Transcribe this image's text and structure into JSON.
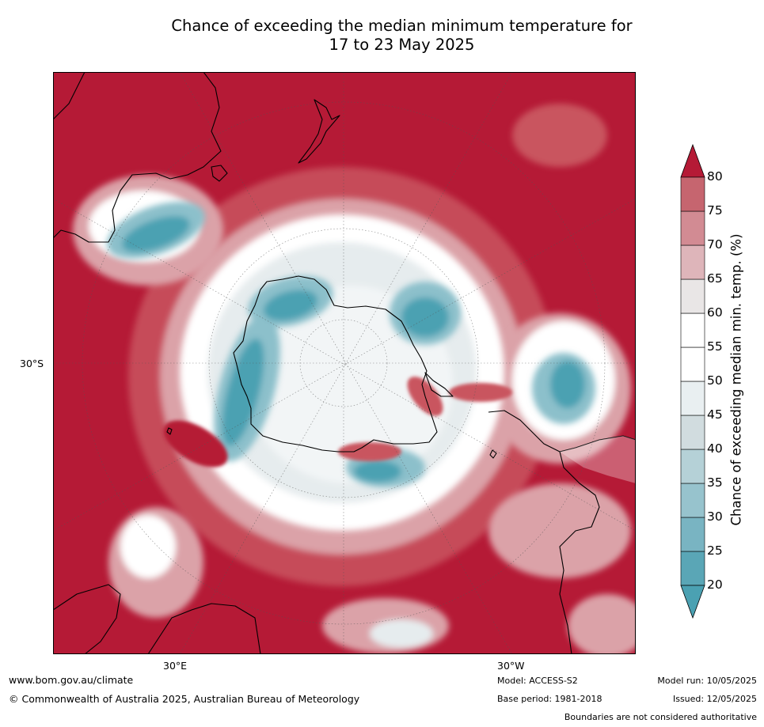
{
  "title_line1": "Chance of exceeding the median minimum temperature for",
  "title_line2": "17 to 23 May 2025",
  "axis_labels": {
    "left": "30°S",
    "bottom_left": "30°E",
    "bottom_right": "30°W"
  },
  "colorbar": {
    "label": "Chance of exceeding median min. temp. (%)",
    "ticks": [
      "20",
      "25",
      "30",
      "35",
      "40",
      "45",
      "50",
      "55",
      "60",
      "65",
      "70",
      "75",
      "80"
    ],
    "colors": [
      "#5aa6b6",
      "#79b4c2",
      "#97c3cd",
      "#b5d1d7",
      "#d1dcdf",
      "#e9eff1",
      "#ffffff",
      "#ffffff",
      "#e9e6e6",
      "#deb5ba",
      "#d28b93",
      "#c6656f",
      "#b8414d"
    ],
    "under_color": "#4ba1b2",
    "over_color": "#b51a36"
  },
  "palette": {
    "red_dark": "#b51a36",
    "red_mid": "#c9545f",
    "red_light": "#dba2a8",
    "neutral": "#ffffff",
    "grey_light": "#e6ecee",
    "teal_light": "#8cc0cb",
    "teal_dark": "#4ba1b2",
    "coast": "#000000"
  },
  "footer": {
    "website": "www.bom.gov.au/climate",
    "copyright": "© Commonwealth of Australia 2025, Australian Bureau of Meteorology",
    "model": "Model: ACCESS-S2",
    "base_period": "Base period: 1981-2018",
    "model_run": "Model run: 10/05/2025",
    "issued": "Issued: 12/05/2025",
    "disclaimer": "Boundaries are not considered authoritative"
  }
}
